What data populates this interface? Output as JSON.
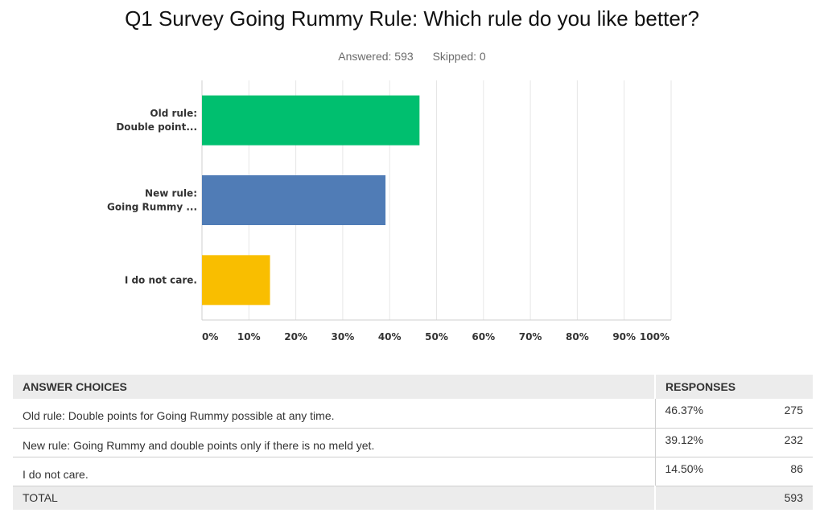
{
  "header": {
    "title": "Q1 Survey Going Rummy Rule: Which rule do you like better?",
    "answered": "Answered: 593",
    "skipped": "Skipped: 0"
  },
  "chart_data": {
    "type": "bar",
    "orientation": "horizontal",
    "categories": [
      [
        "Old rule:",
        "Double point..."
      ],
      [
        "New rule:",
        "Going Rummy ..."
      ],
      [
        "I do not care."
      ]
    ],
    "values": [
      46.37,
      39.12,
      14.5
    ],
    "colors": [
      "#00bf6f",
      "#507cb6",
      "#f9be00"
    ],
    "xlim": [
      0,
      100
    ],
    "xticks": [
      "0%",
      "10%",
      "20%",
      "30%",
      "40%",
      "50%",
      "60%",
      "70%",
      "80%",
      "90%",
      "100%"
    ],
    "grid": true
  },
  "table": {
    "headers": {
      "choices": "ANSWER CHOICES",
      "responses": "RESPONSES"
    },
    "rows": [
      {
        "choice": "Old rule: Double points for Going Rummy possible at any time.",
        "percent": "46.37%",
        "count": "275"
      },
      {
        "choice": "New rule: Going Rummy and double points only if there is no meld yet.",
        "percent": "39.12%",
        "count": "232"
      },
      {
        "choice": "I do not care.",
        "percent": "14.50%",
        "count": "86"
      }
    ],
    "total": {
      "label": "TOTAL",
      "count": "593"
    }
  }
}
